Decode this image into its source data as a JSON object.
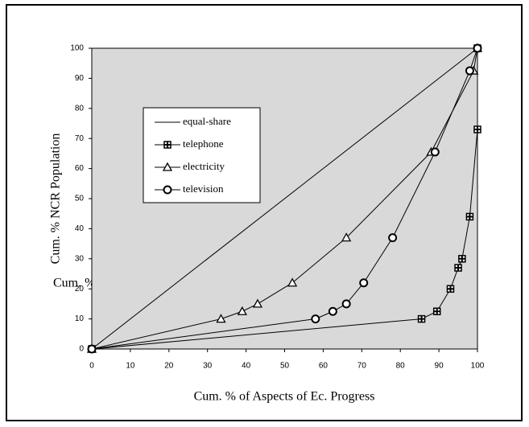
{
  "chart_data": {
    "type": "line",
    "xlabel": "Cum. % of Aspects of Ec. Progress",
    "ylabel": "Cum. % NCR Population",
    "annotation": "Cum. % NCR Population",
    "xlim": [
      0,
      100
    ],
    "ylim": [
      0,
      100
    ],
    "xticks": [
      0,
      10,
      20,
      30,
      40,
      50,
      60,
      70,
      80,
      90,
      100
    ],
    "yticks": [
      0,
      10,
      20,
      30,
      40,
      50,
      60,
      70,
      80,
      90,
      100
    ],
    "plot_background": "#d9d9d9",
    "series": [
      {
        "name": "equal-share",
        "color": "#000000",
        "marker": "none",
        "x": [
          0,
          100
        ],
        "values": [
          0,
          100
        ]
      },
      {
        "name": "telephone",
        "color": "#000000",
        "marker": "square-cross",
        "x": [
          0,
          85.5,
          89.5,
          93,
          95,
          96,
          98,
          100,
          100
        ],
        "values": [
          0,
          10,
          12.5,
          20,
          27,
          30,
          44,
          73,
          100
        ]
      },
      {
        "name": "electricity",
        "color": "#000000",
        "marker": "triangle",
        "x": [
          0,
          33.5,
          39,
          43,
          52,
          66,
          88,
          99,
          100
        ],
        "values": [
          0,
          10,
          12.5,
          15,
          22,
          37,
          65.5,
          92.5,
          100
        ]
      },
      {
        "name": "television",
        "color": "#000000",
        "marker": "circle",
        "x": [
          0,
          58,
          62.5,
          66,
          70.5,
          78,
          89,
          98,
          100
        ],
        "values": [
          0,
          10,
          12.5,
          15,
          22,
          37,
          65.5,
          92.5,
          100
        ]
      }
    ]
  }
}
